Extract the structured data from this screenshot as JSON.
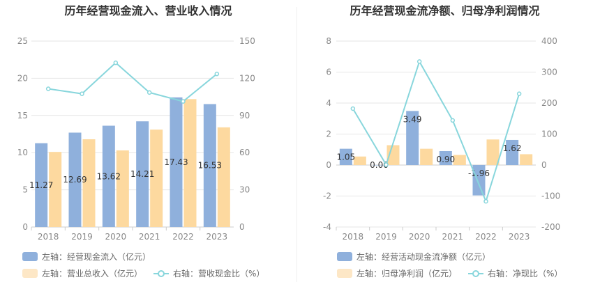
{
  "colors": {
    "bar_primary": "#8fb0dc",
    "bar_secondary": "#fdd99f",
    "line": "#88d6dc",
    "grid": "#e6e6e6"
  },
  "chart_data": [
    {
      "type": "bar",
      "title": "历年经营现金流入、营业收入情况",
      "categories": [
        "2018",
        "2019",
        "2020",
        "2021",
        "2022",
        "2023"
      ],
      "y_left": {
        "ticks": [
          "0",
          "5",
          "10",
          "15",
          "20",
          "25"
        ],
        "ylim": [
          0,
          25
        ]
      },
      "y_right": {
        "ticks": [
          "0",
          "30",
          "60",
          "90",
          "120",
          "150"
        ],
        "ylim": [
          0,
          150
        ]
      },
      "series": [
        {
          "name": "左轴：经营现金流入（亿元）",
          "axis": "left",
          "kind": "bar",
          "values": [
            11.27,
            12.69,
            13.62,
            14.21,
            17.43,
            16.53
          ],
          "labels": [
            "11.27",
            "12.69",
            "13.62",
            "14.21",
            "17.43",
            "16.53"
          ]
        },
        {
          "name": "左轴：营业总收入（亿元）",
          "axis": "left",
          "kind": "bar",
          "values": [
            10.1,
            11.8,
            10.3,
            13.1,
            17.2,
            13.4
          ]
        },
        {
          "name": "右轴：营收现金比（%）",
          "axis": "right",
          "kind": "line",
          "values": [
            111.5,
            107.5,
            132.5,
            108.5,
            101.3,
            123.5
          ]
        }
      ],
      "grid": true,
      "legend_position": "bottom"
    },
    {
      "type": "bar",
      "title": "历年经营现金流净额、归母净利润情况",
      "categories": [
        "2018",
        "2019",
        "2020",
        "2021",
        "2022",
        "2023"
      ],
      "y_left": {
        "ticks": [
          "-4",
          "-2",
          "0",
          "2",
          "4",
          "6",
          "8"
        ],
        "ylim": [
          -4,
          8
        ]
      },
      "y_right": {
        "ticks": [
          "-200",
          "-100",
          "0",
          "100",
          "200",
          "300",
          "400"
        ],
        "ylim": [
          -200,
          400
        ]
      },
      "series": [
        {
          "name": "左轴：经营活动现金流净额（亿元）",
          "axis": "left",
          "kind": "bar",
          "values": [
            1.05,
            0.0,
            3.49,
            0.9,
            -1.96,
            1.62
          ],
          "labels": [
            "1.05",
            "0.00",
            "3.49",
            "0.90",
            "-1.96",
            "1.62"
          ]
        },
        {
          "name": "左轴：归母净利润（亿元）",
          "axis": "left",
          "kind": "bar",
          "values": [
            0.55,
            1.28,
            1.05,
            0.65,
            1.65,
            0.7
          ]
        },
        {
          "name": "右轴：净现比（%）",
          "axis": "right",
          "kind": "line",
          "values": [
            182,
            1,
            334,
            144,
            -117,
            230
          ]
        }
      ],
      "grid": true,
      "legend_position": "bottom"
    }
  ]
}
